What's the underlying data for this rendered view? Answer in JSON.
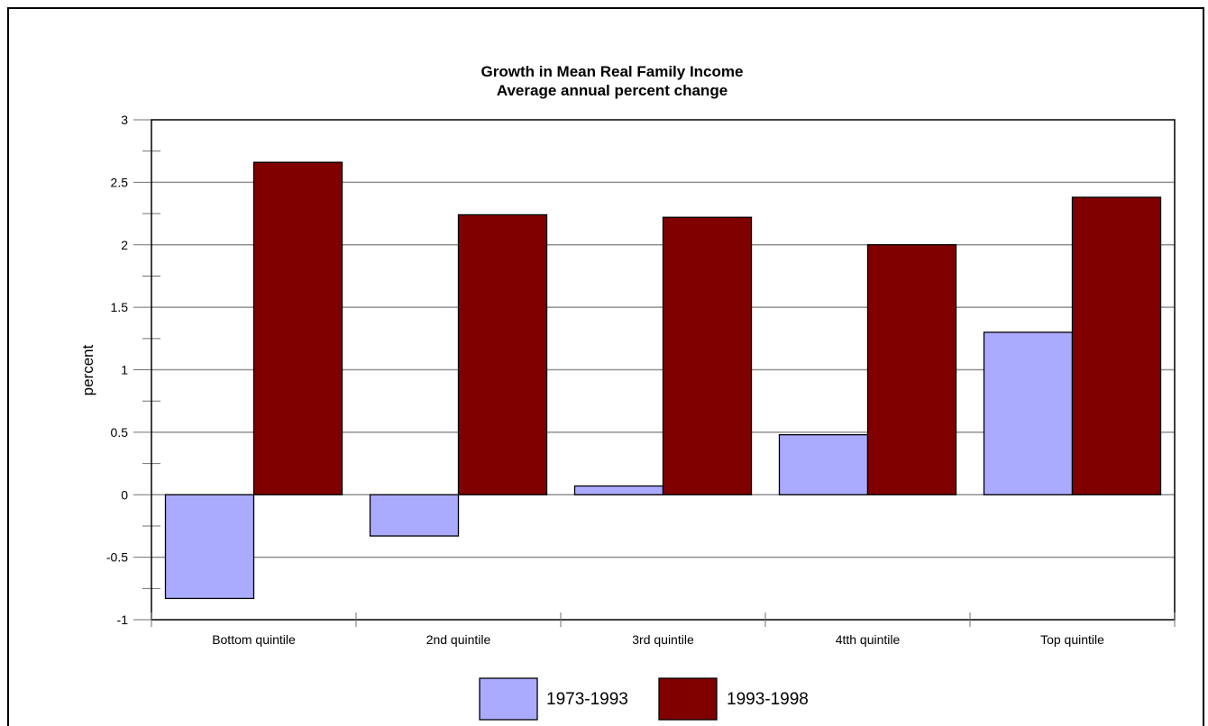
{
  "chart_data": {
    "type": "bar",
    "title": "Growth in Mean Real Family Income",
    "subtitle": "Average annual percent change",
    "xlabel": "",
    "ylabel": "percent",
    "categories": [
      "Bottom quintile",
      "2nd quintile",
      "3rd quintile",
      "4tth quintile",
      "Top quintile"
    ],
    "series": [
      {
        "name": "1973-1993",
        "color": "#aaaaff",
        "values": [
          -0.83,
          -0.33,
          0.07,
          0.48,
          1.3
        ]
      },
      {
        "name": "1993-1998",
        "color": "#800000",
        "values": [
          2.66,
          2.24,
          2.22,
          2.0,
          2.38
        ]
      }
    ],
    "ylim": [
      -1,
      3
    ],
    "yticks": [
      "-1",
      "-0.5",
      "0",
      "0.5",
      "1",
      "1.5",
      "2",
      "2.5",
      "3"
    ],
    "grid": true,
    "legend": "bottom"
  }
}
